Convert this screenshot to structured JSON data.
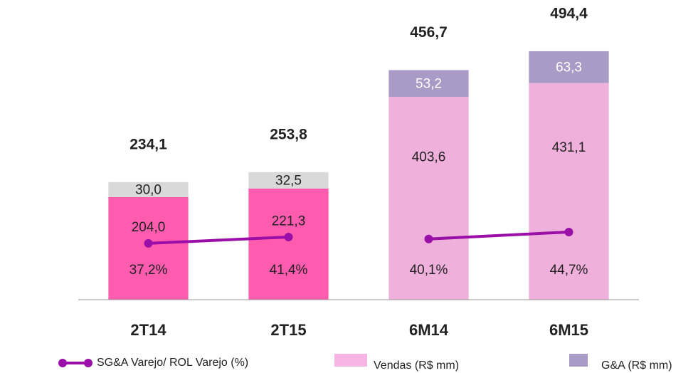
{
  "chart_data": {
    "type": "bar",
    "categories": [
      "2T14",
      "2T15",
      "6M14",
      "6M15"
    ],
    "stacked": true,
    "series": [
      {
        "name": "Vendas (R$ mm)",
        "color": "#f7b5e6",
        "colors": [
          "#ff5cb0",
          "#ff5cb0",
          "#efb0db",
          "#efb0db"
        ],
        "values": [
          204.0,
          221.3,
          403.6,
          431.1
        ],
        "value_labels": [
          "204,0",
          "221,3",
          "403,6",
          "431,1"
        ]
      },
      {
        "name": "G&A (R$ mm)",
        "color": "#a99bc6",
        "colors": [
          "#d9d9d9",
          "#d9d9d9",
          "#a99bc6",
          "#a99bc6"
        ],
        "label_colors": [
          "#222222",
          "#222222",
          "#ffffff",
          "#ffffff"
        ],
        "values": [
          30.0,
          32.5,
          53.2,
          63.3
        ],
        "value_labels": [
          "30,0",
          "32,5",
          "53,2",
          "63,3"
        ]
      },
      {
        "name": "SG&A Varejo/ ROL Varejo (%)",
        "type": "line",
        "axis": "y2",
        "color": "#9a0fa8",
        "values": [
          37.2,
          41.4,
          40.1,
          44.7
        ],
        "value_labels": [
          "37,2%",
          "41,4%",
          "40,1%",
          "44,7%"
        ],
        "segments": [
          [
            0,
            1
          ],
          [
            2,
            3
          ]
        ]
      }
    ],
    "totals": {
      "values": [
        234.1,
        253.8,
        456.7,
        494.4
      ],
      "value_labels": [
        "234,1",
        "253,8",
        "456,7",
        "494,4"
      ]
    },
    "ylim": [
      0,
      500
    ],
    "y2lim": [
      0,
      166
    ]
  }
}
